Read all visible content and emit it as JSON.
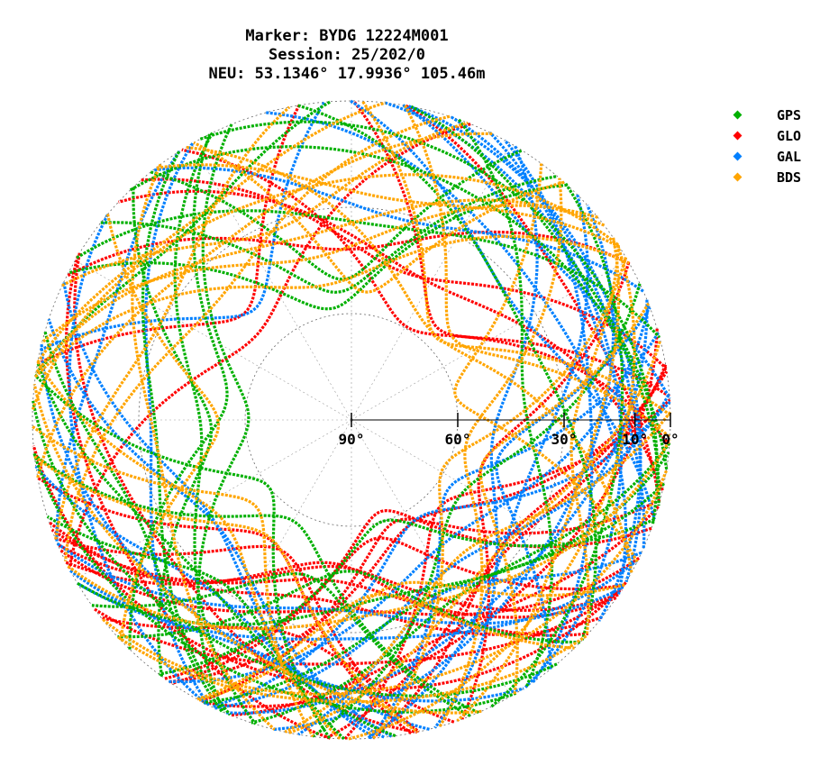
{
  "chart_data": {
    "type": "scatter",
    "subtype": "polar-skyplot",
    "title": [
      "Marker: BYDG 12224M001",
      "Session: 25/202/0",
      "NEU: 53.1346° 17.9936° 105.46m"
    ],
    "elevation_ticks": [
      {
        "value": 90,
        "label": "90°"
      },
      {
        "value": 60,
        "label": "60°"
      },
      {
        "value": 30,
        "label": "30°"
      },
      {
        "value": 10,
        "label": "10°"
      },
      {
        "value": 0,
        "label": "0°"
      }
    ],
    "elevation_range": [
      0,
      90
    ],
    "azimuth_range": [
      0,
      360
    ],
    "grid": true,
    "legend_position": "top-right",
    "series": [
      {
        "name": "GPS",
        "color": "#00b000"
      },
      {
        "name": "GLO",
        "color": "#ff0000"
      },
      {
        "name": "GAL",
        "color": "#0080ff"
      },
      {
        "name": "BDS",
        "color": "#ffa500"
      }
    ]
  }
}
